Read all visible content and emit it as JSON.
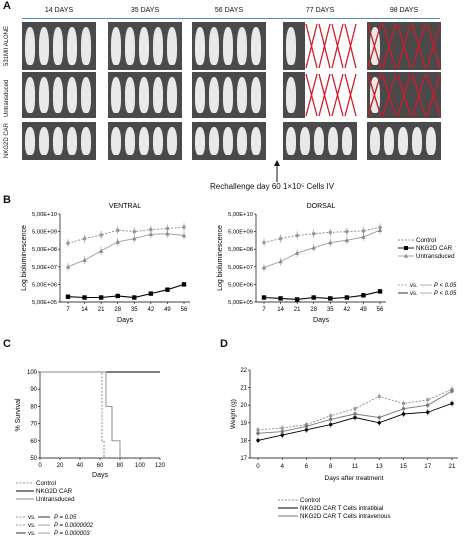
{
  "panelA": {
    "letter": "A",
    "days": [
      "14 DAYS",
      "35 DAYS",
      "56 DAYS",
      "77 DAYS",
      "98 DAYS"
    ],
    "rows": [
      "531MII ALONE",
      "Untransduced",
      "NKG2D CAR"
    ],
    "rechallenge": "Rechallenge day 60 1×10⁵ Cells IV",
    "cross_color": "#d11a2a"
  },
  "panelB": {
    "letter": "B",
    "chart_data": [
      {
        "type": "line",
        "title": "VENTRAL",
        "xlabel": "Days",
        "ylabel": "Log bioluminescence",
        "x": [
          7,
          14,
          21,
          28,
          35,
          42,
          49,
          56
        ],
        "y_ticks": [
          "5,00E+05",
          "5,00E+06",
          "5,00E+07",
          "5,00E+08",
          "5,00E+09",
          "5,00E+10"
        ],
        "log_scale": true,
        "ylim": [
          500000,
          50000000000
        ],
        "series": [
          {
            "name": "Control",
            "values": [
              1100000000.0,
              2000000000.0,
              3200000000.0,
              6000000000.0,
              5000000000.0,
              6500000000.0,
              7500000000.0,
              9000000000.0
            ]
          },
          {
            "name": "NKG2D CAR",
            "values": [
              1000000.0,
              900000.0,
              900000.0,
              1100000.0,
              900000.0,
              1500000.0,
              2500000.0,
              5000000.0
            ]
          },
          {
            "name": "Untransduced",
            "values": [
              50000000.0,
              120000000.0,
              400000000.0,
              1300000000.0,
              2000000000.0,
              3500000000.0,
              3800000000.0,
              3000000000.0
            ]
          }
        ]
      },
      {
        "type": "line",
        "title": "DORSAL",
        "xlabel": "Days",
        "ylabel": "Log bioluminescence",
        "x": [
          7,
          14,
          21,
          28,
          35,
          42,
          49,
          56
        ],
        "y_ticks": [
          "5,00E+05",
          "5,00E+06",
          "5,00E+07",
          "5,00E+08",
          "5,00E+09",
          "5,00E+10"
        ],
        "log_scale": true,
        "ylim": [
          500000,
          50000000000
        ],
        "series": [
          {
            "name": "Control",
            "values": [
              1200000000.0,
              2000000000.0,
              3000000000.0,
              3800000000.0,
              4500000000.0,
              5000000000.0,
              5500000000.0,
              8500000000.0
            ]
          },
          {
            "name": "NKG2D CAR",
            "values": [
              900000.0,
              800000.0,
              700000.0,
              900000.0,
              800000.0,
              900000.0,
              1200000.0,
              2000000.0
            ]
          },
          {
            "name": "Untransduced",
            "values": [
              45000000.0,
              100000000.0,
              300000000.0,
              600000000.0,
              1200000000.0,
              1600000000.0,
              2500000000.0,
              6000000000.0
            ]
          }
        ]
      }
    ],
    "legend": {
      "items": [
        "Control",
        "NKG2D CAR",
        "Untransduced"
      ],
      "pvals": [
        {
          "vs": "vs.",
          "p": "P < 0.05"
        },
        {
          "vs": "vs.",
          "p": "P < 0.05"
        }
      ]
    }
  },
  "panelC": {
    "letter": "C",
    "chart_data": {
      "type": "line",
      "xlabel": "Days",
      "ylabel": "% Survival",
      "x_ticks": [
        "0",
        "20",
        "40",
        "60",
        "80",
        "100",
        "120"
      ],
      "y_ticks": [
        "50",
        "60",
        "70",
        "80",
        "90",
        "100"
      ],
      "xlim": [
        0,
        120
      ],
      "ylim": [
        50,
        100
      ],
      "series": [
        {
          "name": "Control",
          "x": [
            0,
            62,
            62,
            64,
            64
          ],
          "y": [
            100,
            100,
            60,
            60,
            50
          ]
        },
        {
          "name": "NKG2D CAR",
          "x": [
            0,
            120
          ],
          "y": [
            100,
            100
          ]
        },
        {
          "name": "Untransduced",
          "x": [
            0,
            66,
            66,
            72,
            72,
            80,
            80
          ],
          "y": [
            100,
            100,
            80,
            80,
            60,
            60,
            50
          ]
        }
      ]
    },
    "legend": {
      "items": [
        "Control",
        "NKG2D CAR",
        "Untransduced"
      ],
      "pvals": [
        {
          "vs": "vs.",
          "p": "P = 0.05"
        },
        {
          "vs": "vs.",
          "p": "P = 0.0000002"
        },
        {
          "vs": "vs.",
          "p": "P = 0.000003"
        }
      ]
    }
  },
  "panelD": {
    "letter": "D",
    "chart_data": {
      "type": "line",
      "xlabel": "Days after treatment",
      "ylabel": "Weight (g)",
      "categories": [
        "0",
        "4",
        "6",
        "8",
        "11",
        "13",
        "15",
        "17",
        "21"
      ],
      "y_ticks": [
        "17",
        "18",
        "19",
        "20",
        "21",
        "22"
      ],
      "ylim": [
        17,
        22
      ],
      "series": [
        {
          "name": "Control",
          "values": [
            18.6,
            18.7,
            18.9,
            19.4,
            19.8,
            20.5,
            20.1,
            20.3,
            20.9
          ]
        },
        {
          "name": "NKG2D CAR T Cells intratibial",
          "values": [
            18.0,
            18.3,
            18.6,
            18.9,
            19.3,
            19.0,
            19.5,
            19.6,
            20.1
          ]
        },
        {
          "name": "NKG2D CAR T Cells intravenous",
          "values": [
            18.4,
            18.5,
            18.8,
            19.2,
            19.5,
            19.3,
            19.8,
            20.0,
            20.8
          ]
        }
      ]
    }
  }
}
